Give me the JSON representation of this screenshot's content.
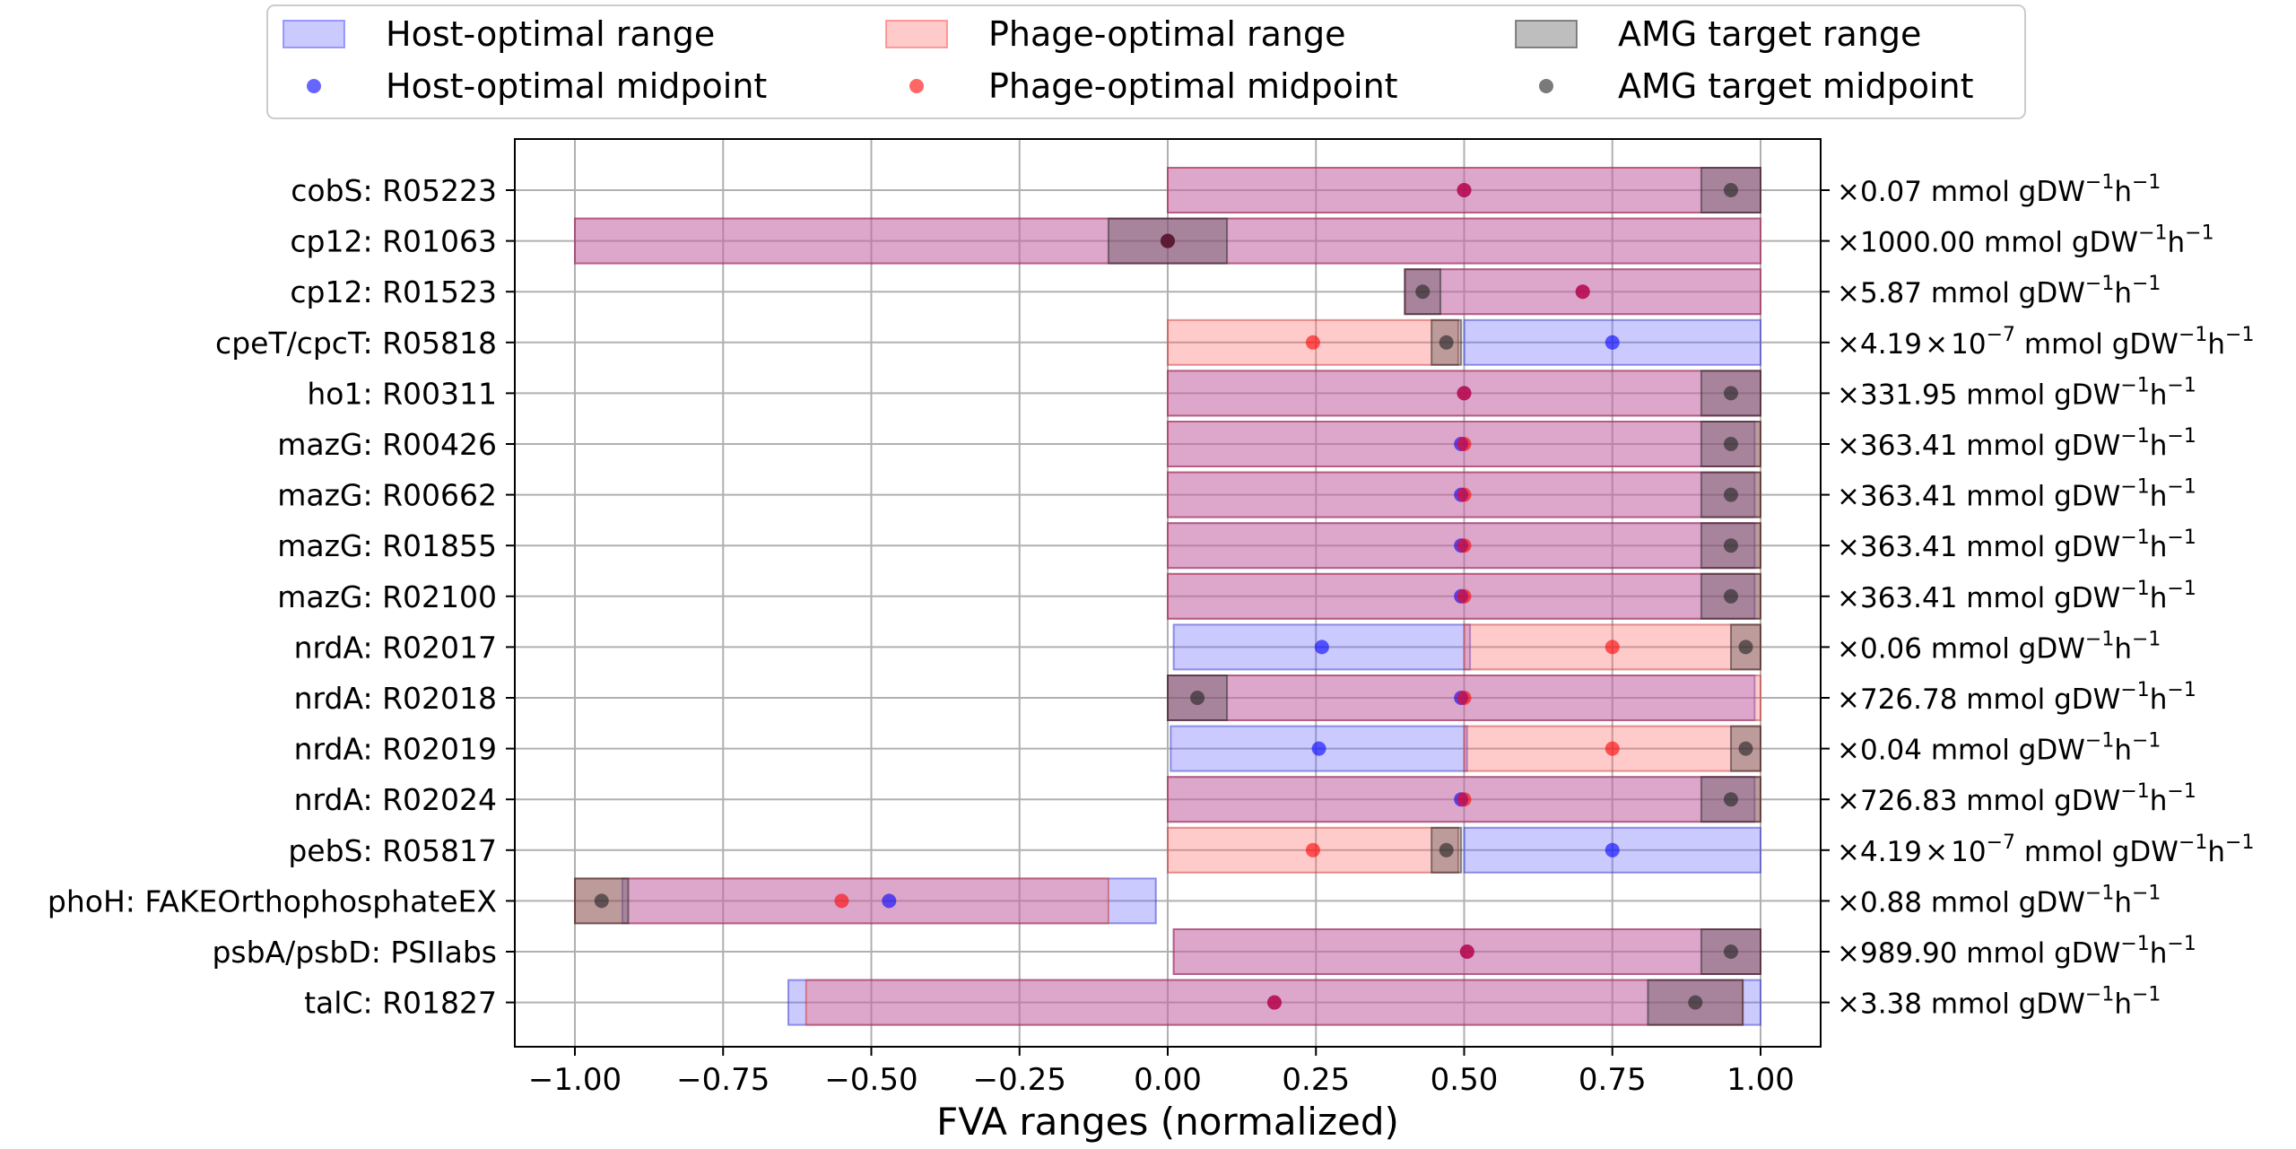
{
  "chart_data": {
    "type": "bar",
    "orientation": "horizontal-range",
    "xlabel": "FVA ranges (normalized)",
    "xlim": [
      -1.1,
      1.1
    ],
    "xticks": [
      -1.0,
      -0.75,
      -0.5,
      -0.25,
      0.0,
      0.25,
      0.5,
      0.75,
      1.0
    ],
    "xtick_labels": [
      "−1.00",
      "−0.75",
      "−0.50",
      "−0.25",
      "0.00",
      "0.25",
      "0.50",
      "0.75",
      "1.00"
    ],
    "grid": true,
    "legend_position": "top",
    "legend": [
      {
        "key": "host_range",
        "label": "Host-optimal range",
        "kind": "range"
      },
      {
        "key": "phage_range",
        "label": "Phage-optimal range",
        "kind": "range"
      },
      {
        "key": "amg_range",
        "label": "AMG target range",
        "kind": "range"
      },
      {
        "key": "host_mid",
        "label": "Host-optimal midpoint",
        "kind": "point"
      },
      {
        "key": "phage_mid",
        "label": "Phage-optimal midpoint",
        "kind": "point"
      },
      {
        "key": "amg_mid",
        "label": "AMG target midpoint",
        "kind": "point"
      }
    ],
    "colors": {
      "host_fill": "#6666ff",
      "host_edge": "#3333cc",
      "host_point": "#0000ff",
      "phage_fill": "#ff6666",
      "phage_edge": "#cc3333",
      "phage_point": "#ff0000",
      "amg_fill": "#444444",
      "amg_edge": "#222222",
      "amg_point": "#222222"
    },
    "reactions": [
      {
        "label": "cobS: R05223",
        "scale_prefix": "×0.07 mmol gDW",
        "host": [
          0.0,
          1.0
        ],
        "phage": [
          0.0,
          1.0
        ],
        "amg": [
          0.9,
          1.0
        ]
      },
      {
        "label": "cp12: R01063",
        "scale_prefix": "×1000.00 mmol gDW",
        "host": [
          -1.0,
          1.0
        ],
        "phage": [
          -1.0,
          1.0
        ],
        "amg": [
          -0.1,
          0.1
        ]
      },
      {
        "label": "cp12: R01523",
        "scale_prefix": "×5.87 mmol gDW",
        "host": [
          0.4,
          1.0
        ],
        "phage": [
          0.4,
          1.0
        ],
        "amg": [
          0.4,
          0.46
        ]
      },
      {
        "label": "cpeT/cpcT: R05818",
        "scale_prefix": "×4.19 × 10",
        "scale_exp": "−7",
        "scale_suffix": " mmol gDW",
        "host": [
          0.5,
          1.0
        ],
        "phage": [
          0.0,
          0.49
        ],
        "amg": [
          0.445,
          0.495
        ]
      },
      {
        "label": "ho1: R00311",
        "scale_prefix": "×331.95 mmol gDW",
        "host": [
          0.0,
          1.0
        ],
        "phage": [
          0.0,
          1.0
        ],
        "amg": [
          0.9,
          1.0
        ]
      },
      {
        "label": "mazG: R00426",
        "scale_prefix": "×363.41 mmol gDW",
        "host": [
          0.0,
          0.99
        ],
        "phage": [
          0.0,
          1.0
        ],
        "amg": [
          0.9,
          1.0
        ]
      },
      {
        "label": "mazG: R00662",
        "scale_prefix": "×363.41 mmol gDW",
        "host": [
          0.0,
          0.99
        ],
        "phage": [
          0.0,
          1.0
        ],
        "amg": [
          0.9,
          1.0
        ]
      },
      {
        "label": "mazG: R01855",
        "scale_prefix": "×363.41 mmol gDW",
        "host": [
          0.0,
          0.99
        ],
        "phage": [
          0.0,
          1.0
        ],
        "amg": [
          0.9,
          1.0
        ]
      },
      {
        "label": "mazG: R02100",
        "scale_prefix": "×363.41 mmol gDW",
        "host": [
          0.0,
          0.99
        ],
        "phage": [
          0.0,
          1.0
        ],
        "amg": [
          0.9,
          1.0
        ]
      },
      {
        "label": "nrdA: R02017",
        "scale_prefix": "×0.06 mmol gDW",
        "host": [
          0.01,
          0.51
        ],
        "phage": [
          0.5,
          1.0
        ],
        "amg": [
          0.95,
          1.0
        ]
      },
      {
        "label": "nrdA: R02018",
        "scale_prefix": "×726.78 mmol gDW",
        "host": [
          0.0,
          0.99
        ],
        "phage": [
          0.0,
          1.0
        ],
        "amg": [
          0.0,
          0.1
        ]
      },
      {
        "label": "nrdA: R02019",
        "scale_prefix": "×0.04 mmol gDW",
        "host": [
          0.005,
          0.505
        ],
        "phage": [
          0.5,
          1.0
        ],
        "amg": [
          0.95,
          1.0
        ]
      },
      {
        "label": "nrdA: R02024",
        "scale_prefix": "×726.83 mmol gDW",
        "host": [
          0.0,
          0.99
        ],
        "phage": [
          0.0,
          1.0
        ],
        "amg": [
          0.9,
          1.0
        ]
      },
      {
        "label": "pebS: R05817",
        "scale_prefix": "×4.19 × 10",
        "scale_exp": "−7",
        "scale_suffix": " mmol gDW",
        "host": [
          0.5,
          1.0
        ],
        "phage": [
          0.0,
          0.49
        ],
        "amg": [
          0.445,
          0.495
        ]
      },
      {
        "label": "phoH: FAKEOrthophosphateEX",
        "scale_prefix": "×0.88 mmol gDW",
        "host": [
          -0.92,
          -0.02
        ],
        "phage": [
          -1.0,
          -0.1
        ],
        "amg": [
          -1.0,
          -0.91
        ]
      },
      {
        "label": "psbA/psbD: PSIIabs",
        "scale_prefix": "×989.90 mmol gDW",
        "host": [
          0.01,
          1.0
        ],
        "phage": [
          0.01,
          1.0
        ],
        "amg": [
          0.9,
          1.0
        ]
      },
      {
        "label": "talC: R01827",
        "scale_prefix": "×3.38 mmol gDW",
        "host": [
          -0.64,
          1.0
        ],
        "phage": [
          -0.61,
          0.97
        ],
        "amg": [
          0.81,
          0.97
        ]
      }
    ]
  }
}
